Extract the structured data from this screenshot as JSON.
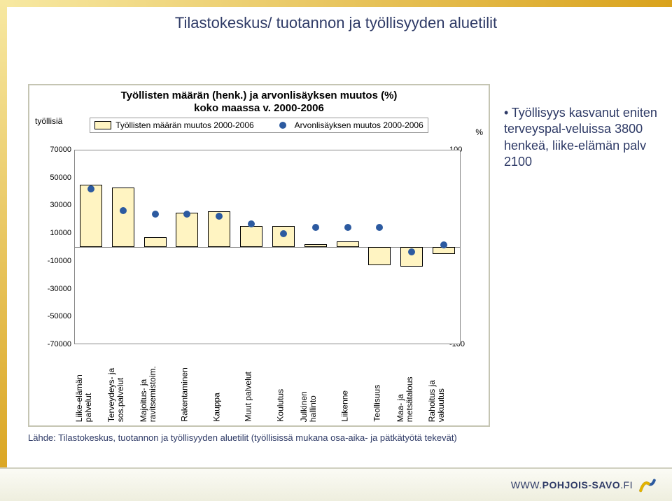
{
  "page_title": "Tilastokeskus/ tuotannon ja työllisyyden aluetilit",
  "annotation": {
    "bullet": "•",
    "text": "Työllisyys kasvanut eniten terveyspal-veluissa 3800 henkeä, liike-elämän palv 2100"
  },
  "chart": {
    "type": "bar+scatter",
    "title_lines": [
      "Työllisten määrän (henk.) ja arvonlisäyksen muutos (%)",
      "koko maassa v. 2000-2006"
    ],
    "legend": {
      "bars_label": "Työllisten määrän muutos 2000-2006",
      "dots_label": "Arvonlisäyksen muutos 2000-2006"
    },
    "y_left": {
      "unit": "työllisiä",
      "min": -70000,
      "max": 70000,
      "step": 20000
    },
    "y_right": {
      "unit": "%",
      "min": -100,
      "max": 100,
      "step": 20
    },
    "bar_fill": "#fff4c2",
    "bar_border": "#000000",
    "dot_color": "#2c5aa0",
    "grid_color": "#888888",
    "categories": [
      {
        "label": "Liike-elämän\npalvelut",
        "bar": 45000,
        "dot": 60
      },
      {
        "label": "Terveydeys- ja\nsos.palvelut",
        "bar": 43000,
        "dot": 38
      },
      {
        "label": "Majoitus- ja\nravitsemistoim.",
        "bar": 7000,
        "dot": 34
      },
      {
        "label": "Rakentaminen",
        "bar": 25000,
        "dot": 34
      },
      {
        "label": "Kauppa",
        "bar": 26000,
        "dot": 32
      },
      {
        "label": "Muut palvelut",
        "bar": 15000,
        "dot": 24
      },
      {
        "label": "Koulutus",
        "bar": 15000,
        "dot": 14
      },
      {
        "label": "Julkinen\nhallinto",
        "bar": 2000,
        "dot": 20
      },
      {
        "label": "Liikenne",
        "bar": 4000,
        "dot": 20
      },
      {
        "label": "Teollisuus",
        "bar": -13000,
        "dot": 20
      },
      {
        "label": "Maa- ja\nmetsätalous",
        "bar": -14000,
        "dot": -5
      },
      {
        "label": "Rahoitus ja\nvakuutus",
        "bar": -5000,
        "dot": 2
      }
    ]
  },
  "source_line": "Lähde: Tilastokeskus, tuotannon ja työllisyyden aluetilit (työllisissä mukana osa-aika- ja pätkätyötä tekevät)",
  "footer": {
    "www": "WWW.",
    "domain": "POHJOIS-SAVO",
    "tld": ".FI",
    "logo_colors": {
      "blue": "#2c5aa0",
      "yellow": "#e3b200"
    }
  }
}
